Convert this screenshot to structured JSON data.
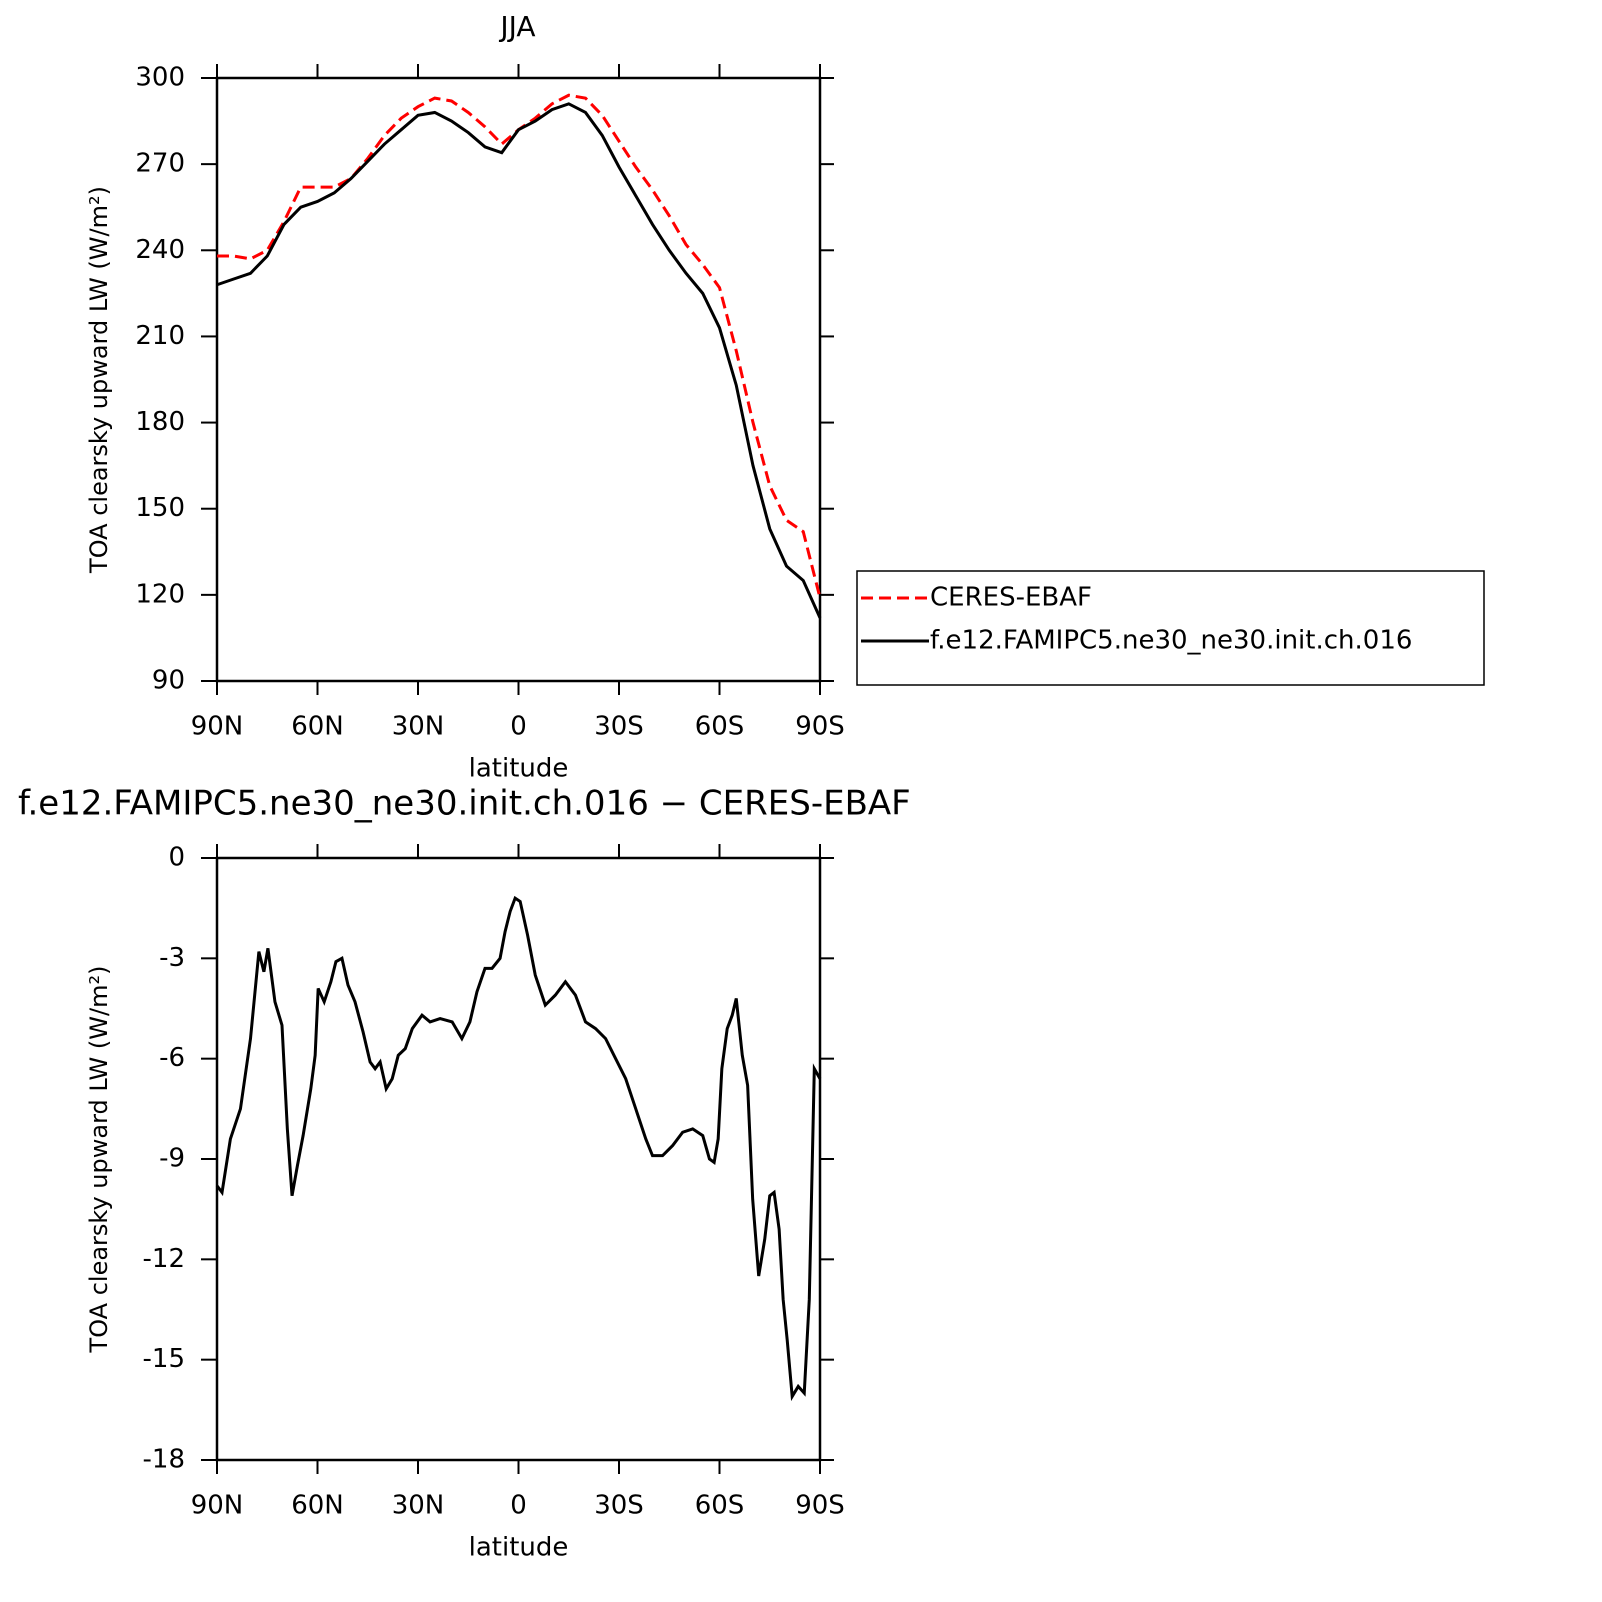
{
  "chart_data": [
    {
      "type": "line",
      "title": "JJA",
      "xlabel": "latitude",
      "ylabel": "TOA clearsky upward LW (W/m²)",
      "x": [
        90,
        85,
        80,
        75,
        70,
        65,
        60,
        55,
        50,
        45,
        40,
        35,
        30,
        25,
        20,
        15,
        10,
        5,
        0,
        -5,
        -10,
        -15,
        -20,
        -25,
        -30,
        -35,
        -40,
        -45,
        -50,
        -55,
        -60,
        -65,
        -70,
        -75,
        -80,
        -85,
        -90
      ],
      "series": [
        {
          "name": "CERES-EBAF",
          "color": "#ff0000",
          "line_style": "dashed",
          "values": [
            238,
            238,
            237,
            240,
            250,
            262,
            262,
            262,
            265,
            272,
            280,
            286,
            290,
            293,
            292,
            288,
            283,
            277,
            282,
            286,
            291,
            294,
            293,
            287,
            278,
            269,
            261,
            252,
            242,
            235,
            227,
            205,
            180,
            158,
            146,
            142,
            119
          ]
        },
        {
          "name": "f.e12.FAMIPC5.ne30_ne30.init.ch.016",
          "color": "#000000",
          "line_style": "solid",
          "values": [
            228,
            230,
            232,
            238,
            249,
            255,
            257,
            260,
            265,
            271,
            277,
            282,
            287,
            288,
            285,
            281,
            276,
            274,
            282,
            285,
            289,
            291,
            288,
            280,
            269,
            259,
            249,
            240,
            232,
            225,
            213,
            193,
            165,
            143,
            130,
            125,
            112
          ]
        }
      ],
      "xlim": [
        90,
        -90
      ],
      "xticks": [
        {
          "value": 90,
          "label": "90N"
        },
        {
          "value": 60,
          "label": "60N"
        },
        {
          "value": 30,
          "label": "30N"
        },
        0,
        {
          "value": -30,
          "label": "30S"
        },
        {
          "value": -60,
          "label": "60S"
        },
        {
          "value": -90,
          "label": "90S"
        }
      ],
      "ylim": [
        90,
        300
      ],
      "yticks": [
        90,
        120,
        150,
        180,
        210,
        240,
        270,
        300
      ],
      "legend_position": "right",
      "grid": false
    },
    {
      "type": "line",
      "title": "f.e12.FAMIPC5.ne30_ne30.init.ch.016 − CERES-EBAF",
      "xlabel": "latitude",
      "ylabel": "TOA clearsky upward LW (W/m²)",
      "color": "#000000",
      "x": [
        90,
        88.5,
        86,
        83,
        80,
        77.5,
        76,
        74.8,
        72.7,
        70.6,
        69,
        67.6,
        66,
        64.3,
        62,
        60.7,
        59.8,
        58,
        56,
        54.5,
        52.7,
        50.9,
        48.8,
        46.4,
        44.3,
        42.8,
        41.3,
        39.5,
        37.7,
        35.9,
        33.8,
        31.7,
        28.8,
        26.4,
        23.4,
        19.8,
        16.9,
        14.5,
        12.4,
        10,
        7.9,
        5.5,
        4,
        2.5,
        1,
        -0.5,
        -2.7,
        -5,
        -8,
        -11,
        -14,
        -17,
        -20,
        -23,
        -26,
        -29,
        -32,
        -35,
        -38,
        -40,
        -43,
        -46,
        -49,
        -52,
        -55,
        -57,
        -58.4,
        -59.6,
        -60.7,
        -62.3,
        -63.8,
        -65,
        -66.8,
        -68.4,
        -69.9,
        -71.7,
        -73.5,
        -75,
        -76.3,
        -77.8,
        -79,
        -80.2,
        -81.7,
        -83.5,
        -85.3,
        -86.8,
        -88.3,
        -90
      ],
      "values": [
        -9.8,
        -10.0,
        -8.4,
        -7.5,
        -5.4,
        -2.8,
        -3.4,
        -2.7,
        -4.3,
        -5.0,
        -8.1,
        -10.1,
        -9.2,
        -8.3,
        -6.9,
        -5.9,
        -3.9,
        -4.3,
        -3.7,
        -3.1,
        -3.0,
        -3.8,
        -4.3,
        -5.2,
        -6.1,
        -6.3,
        -6.1,
        -6.9,
        -6.6,
        -5.9,
        -5.7,
        -5.1,
        -4.7,
        -4.9,
        -4.8,
        -4.9,
        -5.4,
        -4.9,
        -4.0,
        -3.3,
        -3.3,
        -3.0,
        -2.2,
        -1.6,
        -1.2,
        -1.3,
        -2.3,
        -3.5,
        -4.4,
        -4.1,
        -3.7,
        -4.1,
        -4.9,
        -5.1,
        -5.4,
        -6.0,
        -6.6,
        -7.5,
        -8.4,
        -8.9,
        -8.9,
        -8.6,
        -8.2,
        -8.1,
        -8.3,
        -9.0,
        -9.1,
        -8.4,
        -6.3,
        -5.1,
        -4.7,
        -4.2,
        -5.9,
        -6.8,
        -10.2,
        -12.5,
        -11.4,
        -10.1,
        -10.0,
        -11.1,
        -13.2,
        -14.4,
        -16.1,
        -15.8,
        -16.0,
        -13.2,
        -6.3,
        -6.6
      ],
      "xlim": [
        90,
        -90
      ],
      "xticks": [
        {
          "value": 90,
          "label": "90N"
        },
        {
          "value": 60,
          "label": "60N"
        },
        {
          "value": 30,
          "label": "30N"
        },
        0,
        {
          "value": -30,
          "label": "30S"
        },
        {
          "value": -60,
          "label": "60S"
        },
        {
          "value": -90,
          "label": "90S"
        }
      ],
      "ylim": [
        -18,
        0
      ],
      "yticks": [
        -18,
        -15,
        -12,
        -9,
        -6,
        -3,
        0
      ],
      "grid": false
    }
  ]
}
